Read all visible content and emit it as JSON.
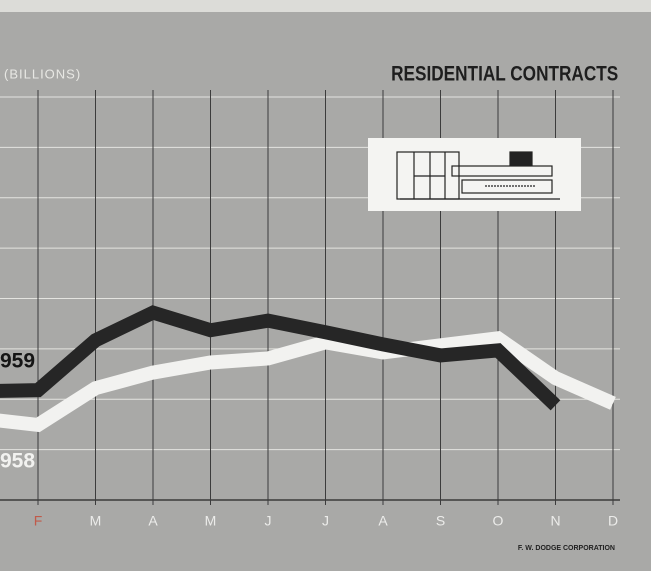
{
  "chart_data": {
    "type": "line",
    "title": "RESIDENTIAL CONTRACTS",
    "y_label": "(BILLIONS)",
    "source": "F. W. DODGE CORPORATION",
    "categories": [
      null,
      "F",
      "M",
      "A",
      "M",
      "J",
      "J",
      "A",
      "S",
      "O",
      "N",
      "D"
    ],
    "series": [
      {
        "name": "959",
        "color": "#262626",
        "values": [
          2.16,
          2.18,
          3.17,
          3.72,
          3.37,
          3.56,
          3.33,
          3.09,
          2.87,
          2.97,
          1.88,
          null
        ]
      },
      {
        "name": "958",
        "color": "#f2f2f0",
        "values": [
          1.62,
          1.49,
          2.22,
          2.53,
          2.73,
          2.81,
          3.13,
          2.93,
          3.07,
          3.21,
          2.42,
          1.92
        ]
      }
    ],
    "ylim": [
      0,
      8
    ],
    "yticks": [
      0,
      1,
      2,
      3,
      4,
      5,
      6,
      7,
      8
    ],
    "grid": true
  }
}
